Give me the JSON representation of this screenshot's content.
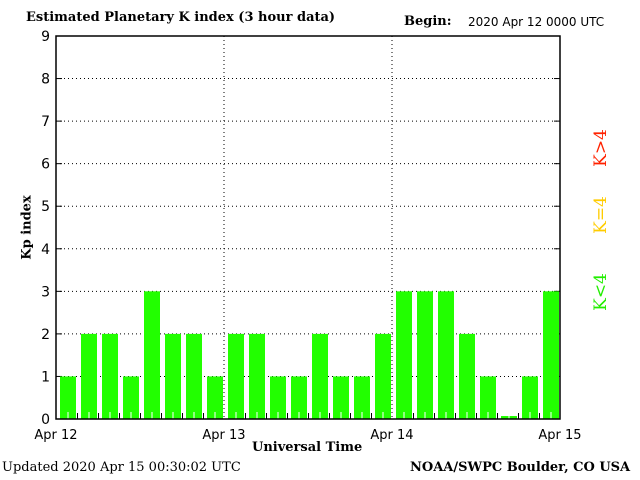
{
  "chart_data": {
    "type": "bar",
    "title": "Estimated Planetary K index (3 hour data)",
    "begin_label": "Begin:",
    "begin_value": "2020 Apr 12 0000 UTC",
    "xlabel": "Universal Time",
    "ylabel": "Kp index",
    "ylim": [
      0,
      9
    ],
    "yticks": [
      "0",
      "1",
      "2",
      "3",
      "4",
      "5",
      "6",
      "7",
      "8",
      "9"
    ],
    "xticks": [
      "Apr 12",
      "Apr 13",
      "Apr 14",
      "Apr 15"
    ],
    "grid": true,
    "values": [
      1,
      2,
      2,
      1,
      3,
      2,
      2,
      1,
      2,
      2,
      1,
      1,
      2,
      1,
      1,
      2,
      3,
      3,
      3,
      2,
      1,
      0.07,
      1,
      3
    ],
    "bar_color": "#22ff00",
    "legend": [
      {
        "label": "K<4",
        "color": "#22ee00"
      },
      {
        "label": "K=4",
        "color": "#ffcc00"
      },
      {
        "label": "K>4",
        "color": "#ff2200"
      }
    ]
  },
  "footer": {
    "updated": "Updated 2020 Apr 15 00:30:02 UTC",
    "source": "NOAA/SWPC Boulder, CO USA"
  }
}
